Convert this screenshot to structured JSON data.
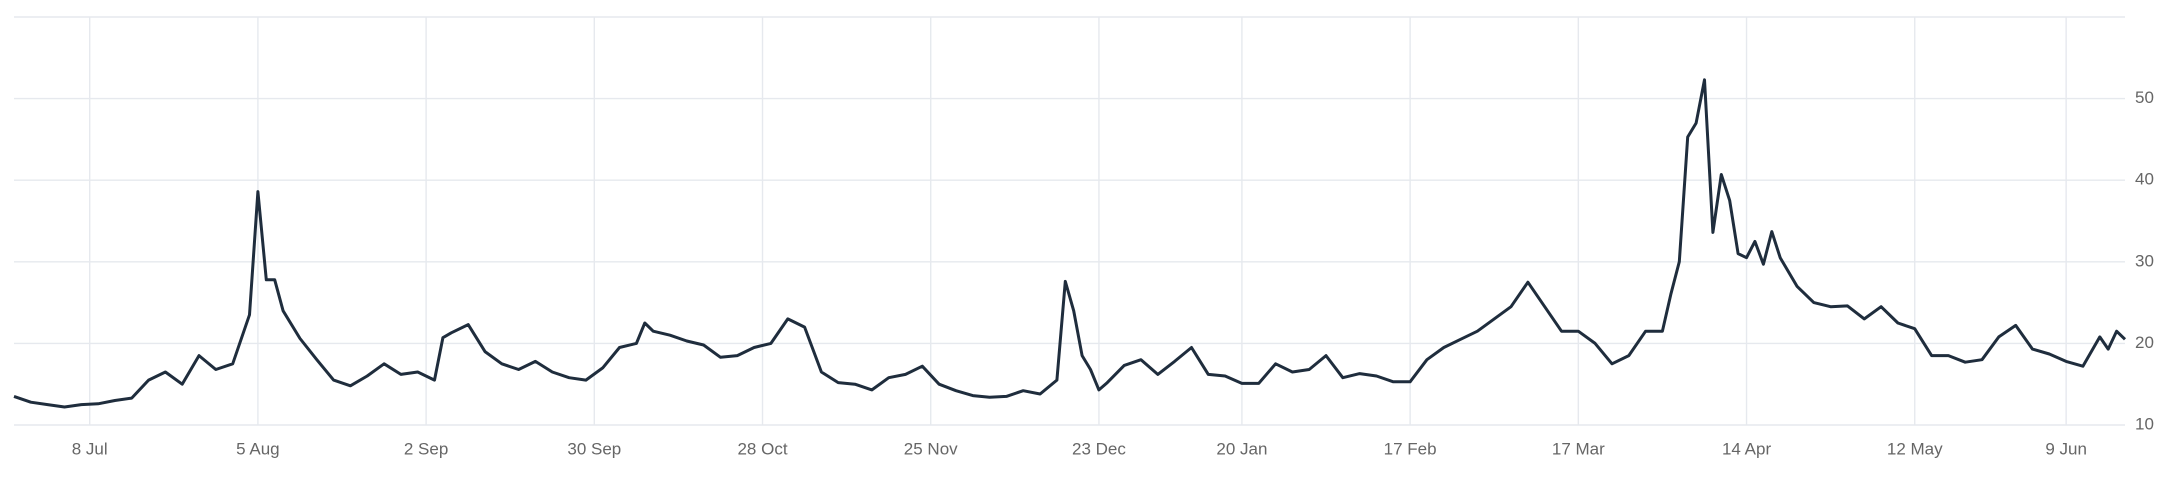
{
  "chart_data": {
    "type": "line",
    "x": [
      0,
      2,
      4,
      6,
      8,
      10,
      12,
      14,
      16,
      18,
      20,
      22,
      24,
      26,
      28,
      29,
      30,
      31,
      32,
      34,
      36,
      38,
      40,
      42,
      44,
      46,
      48,
      50,
      51,
      52,
      54,
      56,
      58,
      60,
      62,
      64,
      66,
      68,
      70,
      72,
      74,
      75,
      76,
      78,
      80,
      82,
      84,
      86,
      88,
      90,
      92,
      94,
      96,
      98,
      100,
      102,
      104,
      106,
      108,
      110,
      112,
      114,
      116,
      118,
      120,
      122,
      124,
      125,
      126,
      127,
      128,
      129,
      130,
      132,
      134,
      136,
      138,
      140,
      142,
      144,
      146,
      148,
      150,
      152,
      154,
      156,
      158,
      160,
      162,
      164,
      166,
      168,
      170,
      172,
      174,
      176,
      178,
      180,
      182,
      184,
      186,
      188,
      190,
      192,
      194,
      196,
      197,
      198,
      199,
      200,
      201,
      202,
      203,
      204,
      205,
      206,
      207,
      208,
      209,
      210,
      212,
      214,
      216,
      218,
      220,
      222,
      224,
      226,
      228,
      230,
      232,
      234,
      236,
      238,
      240,
      242,
      244,
      246,
      248,
      249,
      250,
      251
    ],
    "series": [
      {
        "color": "#1f2d3d",
        "values": [
          13.5,
          12.8,
          12.5,
          12.2,
          12.5,
          12.6,
          13.0,
          13.3,
          15.5,
          16.5,
          15.0,
          18.5,
          16.8,
          17.5,
          23.5,
          38.6,
          27.8,
          27.8,
          24.0,
          20.6,
          18.0,
          15.5,
          14.8,
          16.0,
          17.5,
          16.2,
          16.5,
          15.5,
          20.7,
          21.3,
          22.3,
          19.0,
          17.5,
          16.8,
          17.8,
          16.5,
          15.8,
          15.5,
          17.0,
          19.5,
          20.0,
          22.5,
          21.5,
          21.0,
          20.3,
          19.8,
          18.3,
          18.5,
          19.5,
          20.0,
          23.0,
          22.0,
          16.5,
          15.2,
          15.0,
          14.3,
          15.8,
          16.2,
          17.2,
          15.0,
          14.2,
          13.6,
          13.4,
          13.5,
          14.2,
          13.8,
          15.5,
          27.6,
          24.0,
          18.5,
          16.8,
          14.3,
          15.2,
          17.3,
          18.0,
          16.2,
          17.8,
          19.5,
          16.2,
          16.0,
          15.1,
          15.1,
          17.5,
          16.5,
          16.8,
          18.5,
          15.8,
          16.3,
          16.0,
          15.3,
          15.3,
          18.0,
          19.5,
          20.5,
          21.5,
          23.0,
          24.5,
          27.5,
          24.5,
          21.5,
          21.5,
          20.0,
          17.5,
          18.5,
          21.5,
          21.5,
          26.0,
          30.0,
          45.3,
          47.0,
          52.3,
          33.6,
          40.7,
          37.5,
          31.0,
          30.5,
          32.5,
          29.7,
          33.7,
          30.5,
          27.0,
          25.0,
          24.5,
          24.6,
          23.0,
          24.5,
          22.5,
          21.8,
          18.5,
          18.5,
          17.7,
          18.0,
          20.8,
          22.2,
          19.3,
          18.7,
          17.8,
          17.2,
          20.8,
          19.3,
          21.5,
          20.5
        ]
      }
    ],
    "xlim": [
      0,
      251
    ],
    "xticks": [
      {
        "value": 9,
        "label": "8 Jul"
      },
      {
        "value": 29,
        "label": "5 Aug"
      },
      {
        "value": 49,
        "label": "2 Sep"
      },
      {
        "value": 69,
        "label": "30 Sep"
      },
      {
        "value": 89,
        "label": "28 Oct"
      },
      {
        "value": 109,
        "label": "25 Nov"
      },
      {
        "value": 129,
        "label": "23 Dec"
      },
      {
        "value": 146,
        "label": "20 Jan"
      },
      {
        "value": 166,
        "label": "17 Feb"
      },
      {
        "value": 186,
        "label": "17 Mar"
      },
      {
        "value": 206,
        "label": "14 Apr"
      },
      {
        "value": 226,
        "label": "12 May"
      },
      {
        "value": 244,
        "label": "9 Jun"
      }
    ],
    "ylim": [
      10,
      60
    ],
    "yticks": [
      10,
      20,
      30,
      40,
      50
    ],
    "grid": true
  }
}
